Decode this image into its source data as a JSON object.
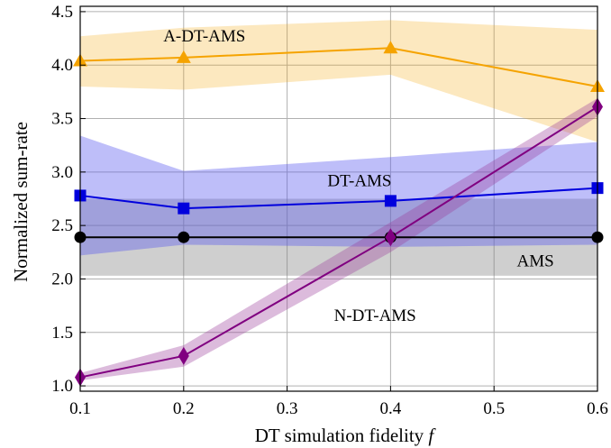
{
  "chart_data": {
    "type": "line",
    "xlabel": "DT simulation fidelity",
    "xlabel_symbol": "f",
    "ylabel": "Normalized sum-rate",
    "xlim": [
      0.1,
      0.6
    ],
    "ylim": [
      0.95,
      4.55
    ],
    "x_ticks": [
      "0.1",
      "0.2",
      "0.3",
      "0.4",
      "0.5",
      "0.6"
    ],
    "y_ticks": [
      "1.0",
      "1.5",
      "2.0",
      "2.5",
      "3.0",
      "3.5",
      "4.0",
      "4.5"
    ],
    "grid": true,
    "series": [
      {
        "name": "AMS",
        "color": "#000000",
        "band_color": "#808080",
        "marker": "circle",
        "x": [
          0.1,
          0.2,
          0.4,
          0.6
        ],
        "y": [
          2.39,
          2.39,
          2.39,
          2.39
        ],
        "lower": [
          2.03,
          2.03,
          2.03,
          2.03
        ],
        "upper": [
          2.75,
          2.75,
          2.75,
          2.75
        ]
      },
      {
        "name": "DT-AMS",
        "color": "#0000dd",
        "band_color": "#5555ee",
        "marker": "square",
        "x": [
          0.1,
          0.2,
          0.4,
          0.6
        ],
        "y": [
          2.78,
          2.66,
          2.73,
          2.85
        ],
        "lower": [
          2.22,
          2.32,
          2.3,
          2.32
        ],
        "upper": [
          3.34,
          3.01,
          3.14,
          3.28
        ]
      },
      {
        "name": "A-DT-AMS",
        "color": "#f5a300",
        "band_color": "#f5a300",
        "marker": "triangle",
        "x": [
          0.1,
          0.2,
          0.4,
          0.6
        ],
        "y": [
          4.04,
          4.07,
          4.16,
          3.8
        ],
        "lower": [
          3.8,
          3.77,
          3.91,
          3.28
        ],
        "upper": [
          4.27,
          4.35,
          4.42,
          4.33
        ]
      },
      {
        "name": "N-DT-AMS",
        "color": "#800080",
        "band_color": "#9b3b9b",
        "marker": "diamond",
        "x": [
          0.1,
          0.2,
          0.4,
          0.6
        ],
        "y": [
          1.08,
          1.28,
          2.39,
          3.61
        ],
        "lower": [
          1.05,
          1.18,
          2.25,
          3.52
        ],
        "upper": [
          1.12,
          1.38,
          2.53,
          3.69
        ]
      }
    ]
  }
}
